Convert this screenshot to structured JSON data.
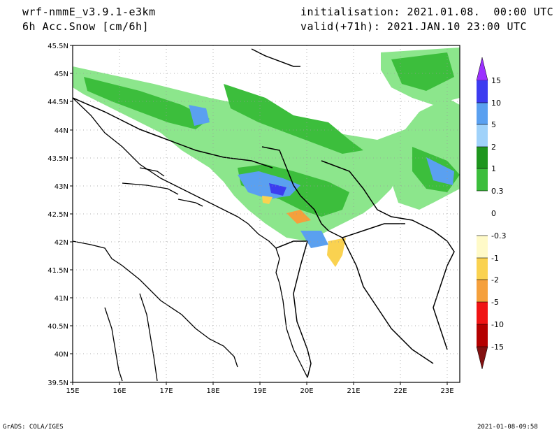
{
  "header": {
    "model": "wrf-nmmE_v3.9.1-e3km",
    "field": "6h Acc.Snow [cm/6h]",
    "init": "initialisation: 2021.01.08.  00:00 UTC",
    "valid": "valid(+71h): 2021.JAN.10 23:00 UTC"
  },
  "footer": {
    "left": "GrADS: COLA/IGES",
    "right": "2021-01-08-09:58"
  },
  "map": {
    "lat_labels": [
      "45.5N",
      "45N",
      "44.5N",
      "44N",
      "43.5N",
      "43N",
      "42.5N",
      "42N",
      "41.5N",
      "41N",
      "40.5N",
      "40N",
      "39.5N"
    ],
    "lon_labels": [
      "15E",
      "16E",
      "17E",
      "18E",
      "19E",
      "20E",
      "21E",
      "22E",
      "23E"
    ]
  },
  "colorbar": {
    "levels": [
      {
        "label": "15",
        "color": "#8a2be2"
      },
      {
        "label": "10",
        "color": "#3c3cf0"
      },
      {
        "label": "5",
        "color": "#5aa0f0"
      },
      {
        "label": "2",
        "color": "#a0d2fa"
      },
      {
        "label": "1",
        "color": "#1e961e"
      },
      {
        "label": "0.3",
        "color": "#3cbe3c"
      },
      {
        "label": "0",
        "color": "#8ce68c"
      },
      {
        "label": "-0.3",
        "color": "#ffffff"
      },
      {
        "label": "-1",
        "color": "#fffac8"
      },
      {
        "label": "-2",
        "color": "#fad250"
      },
      {
        "label": "-5",
        "color": "#f5a03c"
      },
      {
        "label": "-10",
        "color": "#f01414"
      },
      {
        "label": "-15",
        "color": "#b40000"
      }
    ],
    "bottom_color": "#821010",
    "top_color": "#9b30ff"
  }
}
